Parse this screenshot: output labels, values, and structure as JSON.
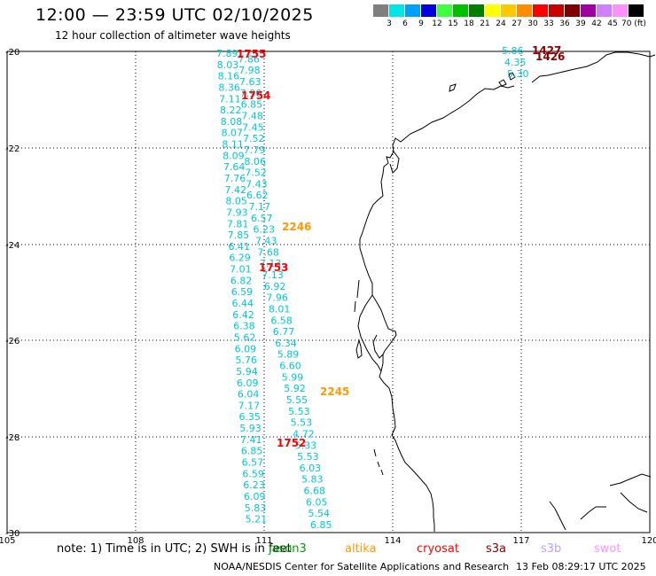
{
  "title": "12:00 — 23:59 UTC 02/10/2025",
  "subtitle": "12 hour collection of altimeter wave heights",
  "legend": {
    "labels": [
      "3",
      "6",
      "9",
      "12",
      "15",
      "18",
      "21",
      "24",
      "27",
      "30",
      "33",
      "36",
      "39",
      "42",
      "45",
      "70 (ft)"
    ],
    "colors": [
      "#7f7f7f",
      "#00e5e5",
      "#00a0ff",
      "#0000e0",
      "#40ff40",
      "#00c000",
      "#008000",
      "#ffff00",
      "#ffc800",
      "#ff8c00",
      "#ff0000",
      "#c80000",
      "#800000",
      "#a000a0",
      "#d080ff",
      "#ff90ff",
      "#000000"
    ]
  },
  "axes": {
    "lon_ticks": [
      "105",
      "108",
      "111",
      "114",
      "117",
      "120"
    ],
    "lat_ticks": [
      "-20",
      "-22",
      "-24",
      "-26",
      "-28",
      "-30"
    ]
  },
  "colors": {
    "cyan": "#00c8d2",
    "red": "#ff0000",
    "darkred": "#8b0000",
    "orange": "#ff9900",
    "coast": "#000000"
  },
  "track1_values": [
    "7.89",
    "7.86",
    "8.03",
    "7.98",
    "8.16",
    "7.63",
    "8.36",
    "7.90",
    "7.11",
    "6.85",
    "8.22",
    "7.48",
    "8.08",
    "7.45",
    "8.07",
    "7.52",
    "8.11",
    "7.79",
    "8.09",
    "8.06",
    "7.64",
    "7.52",
    "7.76",
    "7.43",
    "7.42",
    "6.62",
    "8.05",
    "7.17",
    "7.93",
    "6.57",
    "7.81",
    "6.23",
    "7.85",
    "7.43",
    "6.41",
    "7.68",
    "6.29",
    "7.13",
    "7.01",
    "7.13",
    "6.82",
    "6.92",
    "6.59",
    "7.96",
    "6.44",
    "8.01",
    "6.42",
    "6.58",
    "6.38",
    "6.77",
    "5.62",
    "6.34",
    "6.09",
    "5.89",
    "5.76",
    "6.60",
    "5.94",
    "5.99",
    "6.09",
    "5.92",
    "6.04",
    "5.55",
    "7.17",
    "5.53",
    "6.35",
    "5.53",
    "5.93",
    "4.72",
    "7.41",
    "5.33",
    "6.85",
    "5.53",
    "6.57",
    "6.03",
    "6.59",
    "5.83",
    "6.23",
    "6.68",
    "6.09",
    "6.05",
    "5.83",
    "5.54",
    "5.21",
    "6.85"
  ],
  "track2_values": [
    "5.86",
    "4.35",
    "5.30"
  ],
  "time_labels": [
    "1755",
    "1754",
    "1753",
    "1752",
    "2246",
    "2245",
    "1427",
    "1426"
  ],
  "note_prefix": "note:  1) Time is in UTC;  2) SWH is in feet",
  "missions": [
    "jason3",
    "altika",
    "cryosat",
    "s3a",
    "s3b",
    "swot"
  ],
  "footer": "NOAA/NESDIS Center for Satellite Applications and Research",
  "timestamp": "13 Feb 08:29:17 UTC 2025"
}
